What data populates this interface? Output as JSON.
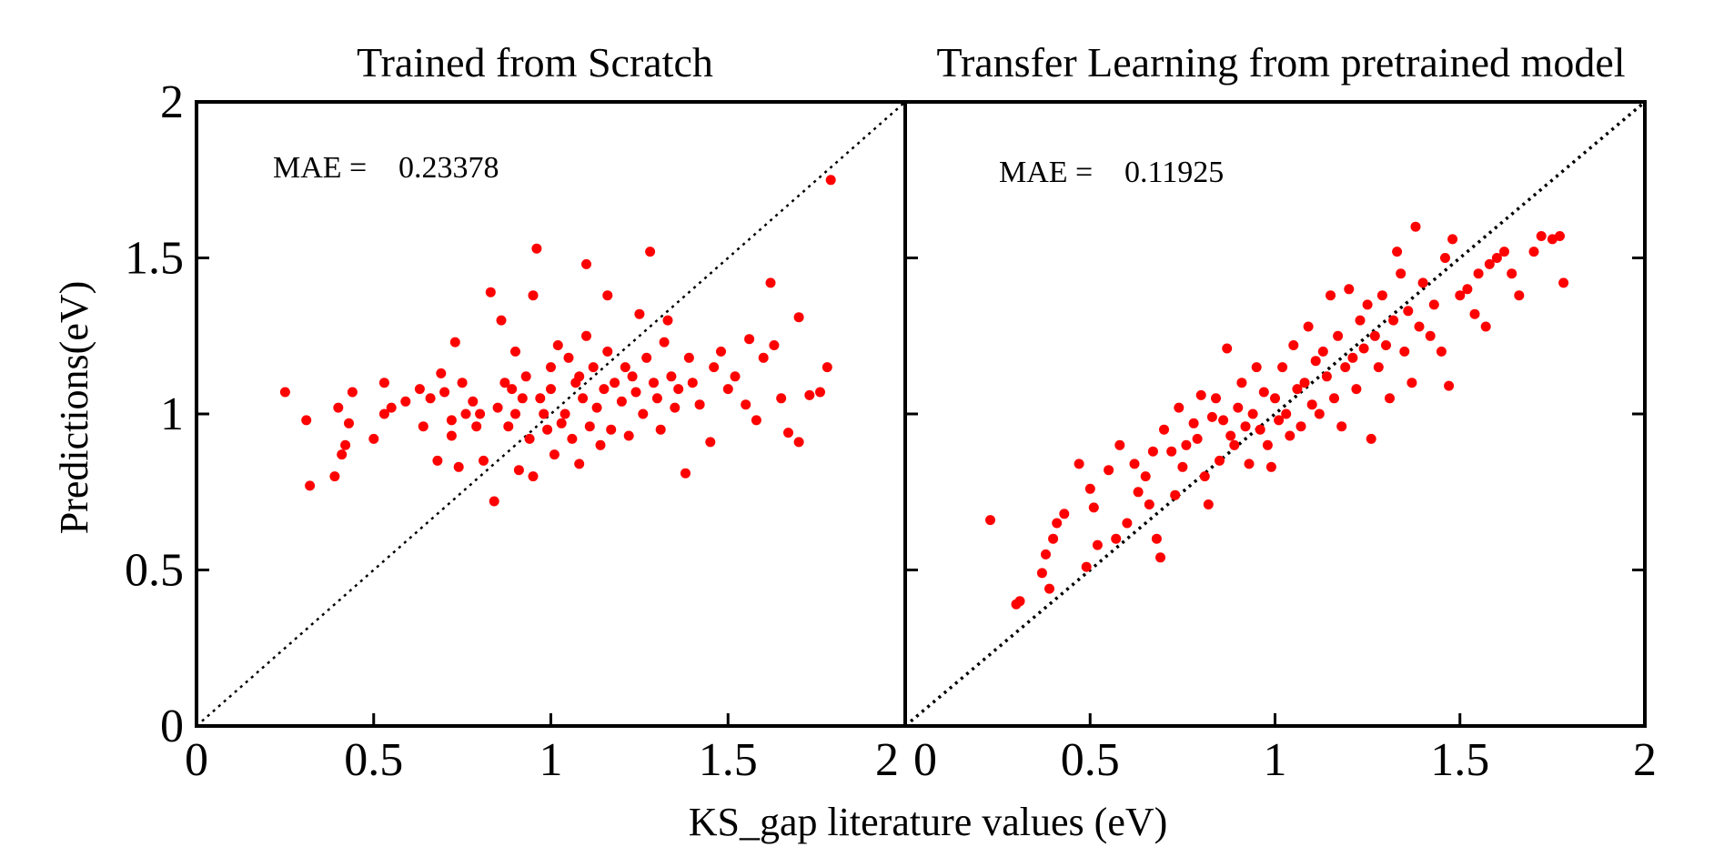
{
  "figure": {
    "xlabel": "KS_gap literature values (eV)",
    "ylabel": "Predictions(eV)"
  },
  "chart_data": [
    {
      "type": "scatter",
      "title": "Trained from Scratch",
      "annotation_label": "MAE =",
      "annotation_value": "0.23378",
      "xlim": [
        0,
        2
      ],
      "ylim": [
        0,
        2
      ],
      "xticks": [
        "0",
        "0.5",
        "1",
        "1.5",
        "2"
      ],
      "yticks": [
        "0",
        "0.5",
        "1",
        "1.5",
        "2"
      ],
      "reference_line": "y = x (dotted)",
      "marker_color": "#ff0000",
      "points": [
        [
          0.25,
          1.07
        ],
        [
          0.31,
          0.98
        ],
        [
          0.32,
          0.77
        ],
        [
          0.39,
          0.8
        ],
        [
          0.4,
          1.02
        ],
        [
          0.41,
          0.87
        ],
        [
          0.42,
          0.9
        ],
        [
          0.43,
          0.97
        ],
        [
          0.44,
          1.07
        ],
        [
          0.5,
          0.92
        ],
        [
          0.53,
          1.1
        ],
        [
          0.53,
          1.0
        ],
        [
          0.55,
          1.02
        ],
        [
          0.59,
          1.04
        ],
        [
          0.63,
          1.08
        ],
        [
          0.64,
          0.96
        ],
        [
          0.66,
          1.05
        ],
        [
          0.68,
          0.85
        ],
        [
          0.69,
          1.13
        ],
        [
          0.7,
          1.07
        ],
        [
          0.72,
          0.93
        ],
        [
          0.72,
          0.98
        ],
        [
          0.73,
          1.23
        ],
        [
          0.74,
          0.83
        ],
        [
          0.75,
          1.1
        ],
        [
          0.76,
          1.0
        ],
        [
          0.78,
          1.04
        ],
        [
          0.79,
          0.96
        ],
        [
          0.8,
          1.0
        ],
        [
          0.81,
          0.85
        ],
        [
          0.83,
          1.39
        ],
        [
          0.84,
          0.72
        ],
        [
          0.85,
          1.02
        ],
        [
          0.86,
          1.3
        ],
        [
          0.87,
          1.1
        ],
        [
          0.88,
          0.96
        ],
        [
          0.89,
          1.08
        ],
        [
          0.9,
          1.0
        ],
        [
          0.9,
          1.2
        ],
        [
          0.91,
          0.82
        ],
        [
          0.92,
          1.05
        ],
        [
          0.93,
          1.12
        ],
        [
          0.94,
          0.92
        ],
        [
          0.95,
          1.38
        ],
        [
          0.95,
          0.8
        ],
        [
          0.96,
          1.53
        ],
        [
          0.97,
          1.05
        ],
        [
          0.98,
          1.0
        ],
        [
          0.99,
          0.95
        ],
        [
          1.0,
          1.15
        ],
        [
          1.0,
          1.08
        ],
        [
          1.01,
          0.87
        ],
        [
          1.02,
          1.22
        ],
        [
          1.03,
          0.97
        ],
        [
          1.04,
          1.0
        ],
        [
          1.05,
          1.18
        ],
        [
          1.06,
          0.92
        ],
        [
          1.07,
          1.1
        ],
        [
          1.08,
          1.12
        ],
        [
          1.08,
          0.84
        ],
        [
          1.09,
          1.05
        ],
        [
          1.1,
          1.48
        ],
        [
          1.1,
          1.25
        ],
        [
          1.11,
          0.96
        ],
        [
          1.12,
          1.15
        ],
        [
          1.13,
          1.02
        ],
        [
          1.14,
          0.9
        ],
        [
          1.15,
          1.08
        ],
        [
          1.16,
          1.2
        ],
        [
          1.16,
          1.38
        ],
        [
          1.17,
          0.95
        ],
        [
          1.18,
          1.1
        ],
        [
          1.2,
          1.04
        ],
        [
          1.21,
          1.15
        ],
        [
          1.22,
          0.93
        ],
        [
          1.23,
          1.12
        ],
        [
          1.24,
          1.07
        ],
        [
          1.25,
          1.32
        ],
        [
          1.26,
          1.0
        ],
        [
          1.27,
          1.18
        ],
        [
          1.28,
          1.52
        ],
        [
          1.29,
          1.1
        ],
        [
          1.3,
          1.05
        ],
        [
          1.31,
          0.95
        ],
        [
          1.32,
          1.23
        ],
        [
          1.33,
          1.3
        ],
        [
          1.34,
          1.12
        ],
        [
          1.35,
          1.02
        ],
        [
          1.36,
          1.08
        ],
        [
          1.38,
          0.81
        ],
        [
          1.39,
          1.18
        ],
        [
          1.4,
          1.1
        ],
        [
          1.42,
          1.03
        ],
        [
          1.45,
          0.91
        ],
        [
          1.46,
          1.15
        ],
        [
          1.48,
          1.2
        ],
        [
          1.5,
          1.08
        ],
        [
          1.52,
          1.12
        ],
        [
          1.55,
          1.03
        ],
        [
          1.56,
          1.24
        ],
        [
          1.58,
          0.98
        ],
        [
          1.6,
          1.18
        ],
        [
          1.62,
          1.42
        ],
        [
          1.63,
          1.22
        ],
        [
          1.65,
          1.05
        ],
        [
          1.67,
          0.94
        ],
        [
          1.7,
          1.31
        ],
        [
          1.7,
          0.91
        ],
        [
          1.73,
          1.06
        ],
        [
          1.76,
          1.07
        ],
        [
          1.78,
          1.15
        ],
        [
          1.79,
          1.75
        ]
      ]
    },
    {
      "type": "scatter",
      "title": "Transfer Learning from pretrained model",
      "annotation_label": "MAE =",
      "annotation_value": "0.11925",
      "xlim": [
        0,
        2
      ],
      "ylim": [
        0,
        2
      ],
      "xticks": [
        "0",
        "0.5",
        "1",
        "1.5",
        "2"
      ],
      "yticks": [
        "0.5",
        "1",
        "1.5",
        "2"
      ],
      "reference_line": "y = x (dotted)",
      "marker_color": "#ff0000",
      "points": [
        [
          0.23,
          0.66
        ],
        [
          0.3,
          0.39
        ],
        [
          0.31,
          0.4
        ],
        [
          0.37,
          0.49
        ],
        [
          0.38,
          0.55
        ],
        [
          0.39,
          0.44
        ],
        [
          0.4,
          0.6
        ],
        [
          0.41,
          0.65
        ],
        [
          0.43,
          0.68
        ],
        [
          0.47,
          0.84
        ],
        [
          0.49,
          0.51
        ],
        [
          0.5,
          0.76
        ],
        [
          0.51,
          0.7
        ],
        [
          0.52,
          0.58
        ],
        [
          0.55,
          0.82
        ],
        [
          0.57,
          0.6
        ],
        [
          0.58,
          0.9
        ],
        [
          0.6,
          0.65
        ],
        [
          0.62,
          0.84
        ],
        [
          0.63,
          0.75
        ],
        [
          0.65,
          0.8
        ],
        [
          0.66,
          0.71
        ],
        [
          0.67,
          0.88
        ],
        [
          0.68,
          0.6
        ],
        [
          0.69,
          0.54
        ],
        [
          0.7,
          0.95
        ],
        [
          0.72,
          0.88
        ],
        [
          0.73,
          0.74
        ],
        [
          0.74,
          1.02
        ],
        [
          0.75,
          0.83
        ],
        [
          0.76,
          0.9
        ],
        [
          0.78,
          0.97
        ],
        [
          0.79,
          0.92
        ],
        [
          0.8,
          1.06
        ],
        [
          0.81,
          0.8
        ],
        [
          0.82,
          0.71
        ],
        [
          0.83,
          0.99
        ],
        [
          0.84,
          1.05
        ],
        [
          0.85,
          0.85
        ],
        [
          0.86,
          0.98
        ],
        [
          0.87,
          1.21
        ],
        [
          0.88,
          0.93
        ],
        [
          0.89,
          0.9
        ],
        [
          0.9,
          1.02
        ],
        [
          0.91,
          1.1
        ],
        [
          0.92,
          0.96
        ],
        [
          0.93,
          0.84
        ],
        [
          0.94,
          1.0
        ],
        [
          0.95,
          1.15
        ],
        [
          0.96,
          0.95
        ],
        [
          0.97,
          1.07
        ],
        [
          0.98,
          0.9
        ],
        [
          0.99,
          0.83
        ],
        [
          1.0,
          1.05
        ],
        [
          1.01,
          0.98
        ],
        [
          1.02,
          1.15
        ],
        [
          1.03,
          1.0
        ],
        [
          1.04,
          0.93
        ],
        [
          1.05,
          1.22
        ],
        [
          1.06,
          1.08
        ],
        [
          1.07,
          0.96
        ],
        [
          1.08,
          1.1
        ],
        [
          1.09,
          1.28
        ],
        [
          1.1,
          1.03
        ],
        [
          1.11,
          1.17
        ],
        [
          1.12,
          1.0
        ],
        [
          1.13,
          1.2
        ],
        [
          1.14,
          1.12
        ],
        [
          1.15,
          1.38
        ],
        [
          1.16,
          1.05
        ],
        [
          1.17,
          1.25
        ],
        [
          1.18,
          0.96
        ],
        [
          1.19,
          1.15
        ],
        [
          1.2,
          1.4
        ],
        [
          1.21,
          1.18
        ],
        [
          1.22,
          1.08
        ],
        [
          1.23,
          1.3
        ],
        [
          1.24,
          1.21
        ],
        [
          1.25,
          1.35
        ],
        [
          1.26,
          0.92
        ],
        [
          1.27,
          1.25
        ],
        [
          1.28,
          1.15
        ],
        [
          1.29,
          1.38
        ],
        [
          1.3,
          1.22
        ],
        [
          1.31,
          1.05
        ],
        [
          1.32,
          1.3
        ],
        [
          1.33,
          1.52
        ],
        [
          1.34,
          1.45
        ],
        [
          1.35,
          1.2
        ],
        [
          1.36,
          1.33
        ],
        [
          1.37,
          1.1
        ],
        [
          1.38,
          1.6
        ],
        [
          1.39,
          1.28
        ],
        [
          1.4,
          1.42
        ],
        [
          1.42,
          1.25
        ],
        [
          1.43,
          1.35
        ],
        [
          1.45,
          1.2
        ],
        [
          1.46,
          1.5
        ],
        [
          1.47,
          1.09
        ],
        [
          1.48,
          1.56
        ],
        [
          1.5,
          1.38
        ],
        [
          1.52,
          1.4
        ],
        [
          1.54,
          1.32
        ],
        [
          1.55,
          1.45
        ],
        [
          1.57,
          1.28
        ],
        [
          1.58,
          1.48
        ],
        [
          1.6,
          1.5
        ],
        [
          1.62,
          1.52
        ],
        [
          1.64,
          1.45
        ],
        [
          1.66,
          1.38
        ],
        [
          1.7,
          1.52
        ],
        [
          1.72,
          1.57
        ],
        [
          1.75,
          1.56
        ],
        [
          1.77,
          1.57
        ],
        [
          1.78,
          1.42
        ]
      ]
    }
  ]
}
